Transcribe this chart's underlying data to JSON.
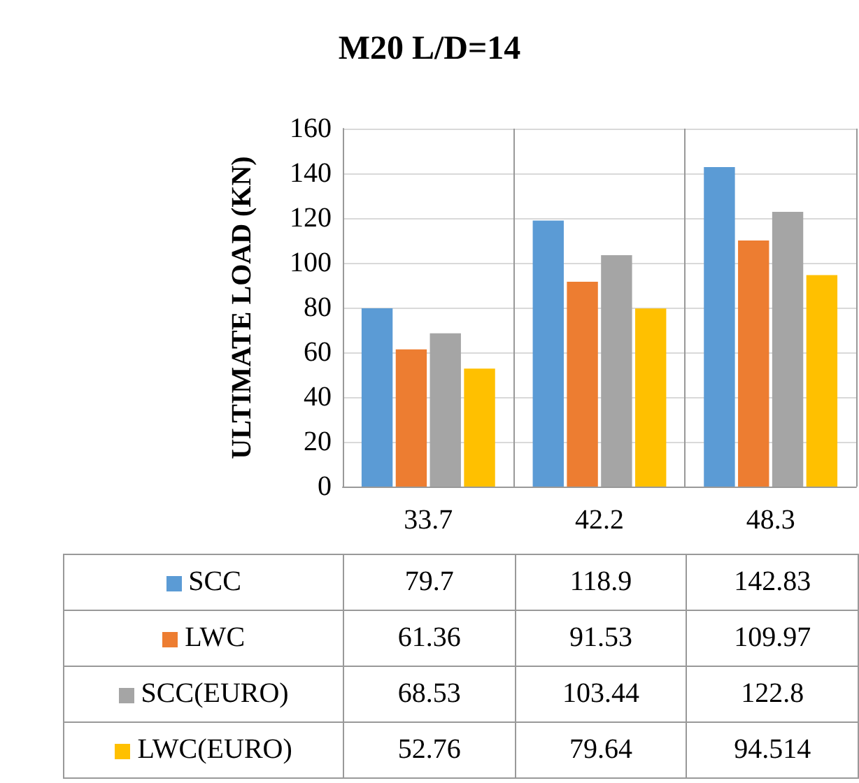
{
  "chart_data": {
    "type": "bar",
    "title": "M20 L/D=14",
    "ylabel": "ULTIMATE LOAD (KN)",
    "categories": [
      "33.7",
      "42.2",
      "48.3"
    ],
    "series": [
      {
        "name": "SCC",
        "color": "#5b9bd5",
        "values": [
          79.7,
          118.9,
          142.83
        ]
      },
      {
        "name": "LWC",
        "color": "#ed7d31",
        "values": [
          61.36,
          91.53,
          109.97
        ]
      },
      {
        "name": "SCC(EURO)",
        "color": "#a5a5a5",
        "values": [
          68.53,
          103.44,
          122.8
        ]
      },
      {
        "name": "LWC(EURO)",
        "color": "#ffc000",
        "values": [
          52.76,
          79.64,
          94.514
        ]
      }
    ],
    "ylim": [
      0,
      160
    ],
    "yticks": [
      0,
      20,
      40,
      60,
      80,
      100,
      120,
      140,
      160
    ],
    "grid": true,
    "legend": "bottom",
    "data_labels": true
  }
}
